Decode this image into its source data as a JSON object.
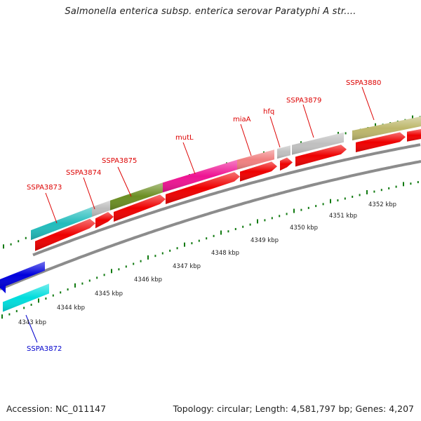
{
  "title": "Salmonella enterica subsp. enterica serovar Paratyphi A str....",
  "footer": {
    "accession": "Accession: NC_011147",
    "info": "Topology: circular; Length: 4,581,797 bp; Genes: 4,207"
  },
  "colors": {
    "label_red": "#dd0000",
    "label_blue": "#0000cc",
    "tick_green": "#117a11",
    "backbone_gray": "#8c8c8c",
    "cds_red": "#ee0000"
  },
  "scale": {
    "ticks": [
      {
        "label": "4343 kbp"
      },
      {
        "label": "4344 kbp"
      },
      {
        "label": "4345 kbp"
      },
      {
        "label": "4346 kbp"
      },
      {
        "label": "4347 kbp"
      },
      {
        "label": "4348 kbp"
      },
      {
        "label": "4349 kbp"
      },
      {
        "label": "4350 kbp"
      },
      {
        "label": "4351 kbp"
      },
      {
        "label": "4352 kbp"
      }
    ]
  },
  "gene_labels": [
    {
      "text": "SSPA3872",
      "color": "#0000cc"
    },
    {
      "text": "SSPA3873",
      "color": "#dd0000"
    },
    {
      "text": "SSPA3874",
      "color": "#dd0000"
    },
    {
      "text": "SSPA3875",
      "color": "#dd0000"
    },
    {
      "text": "mutL",
      "color": "#dd0000"
    },
    {
      "text": "miaA",
      "color": "#dd0000"
    },
    {
      "text": "hfq",
      "color": "#dd0000"
    },
    {
      "text": "SSPA3879",
      "color": "#dd0000"
    },
    {
      "text": "SSPA3880",
      "color": "#dd0000"
    }
  ],
  "gene_colors": [
    "#0000dd",
    "#00dddd",
    "#22bcbc",
    "#bcbcbc",
    "#6b8e23",
    "#ee1493",
    "#f08080",
    "#c0c0c0",
    "#bdb76b"
  ]
}
